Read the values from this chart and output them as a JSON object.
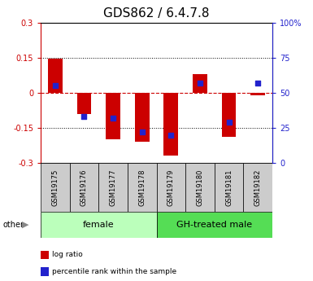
{
  "title": "GDS862 / 6.4.7.8",
  "samples": [
    "GSM19175",
    "GSM19176",
    "GSM19177",
    "GSM19178",
    "GSM19179",
    "GSM19180",
    "GSM19181",
    "GSM19182"
  ],
  "log_ratio": [
    0.145,
    -0.09,
    -0.2,
    -0.21,
    -0.27,
    0.08,
    -0.19,
    -0.01
  ],
  "percentile_rank": [
    55,
    33,
    32,
    22,
    20,
    57,
    29,
    57
  ],
  "groups": [
    {
      "label": "female",
      "start": 0,
      "end": 4,
      "color": "#bbffbb"
    },
    {
      "label": "GH-treated male",
      "start": 4,
      "end": 8,
      "color": "#55dd55"
    }
  ],
  "left_ylim": [
    -0.3,
    0.3
  ],
  "right_ylim": [
    0,
    100
  ],
  "left_yticks": [
    -0.3,
    -0.15,
    0,
    0.15,
    0.3
  ],
  "right_yticks": [
    0,
    25,
    50,
    75,
    100
  ],
  "left_yticklabels": [
    "-0.3",
    "-0.15",
    "0",
    "0.15",
    "0.3"
  ],
  "right_yticklabels": [
    "0",
    "25",
    "50",
    "75",
    "100%"
  ],
  "bar_color_red": "#cc0000",
  "bar_color_blue": "#2222cc",
  "bar_width": 0.5,
  "dot_size": 22,
  "hline_color": "#cc0000",
  "hline_style": "--",
  "grid_color": "#000000",
  "grid_style": ":",
  "bg_color": "#ffffff",
  "plot_bg": "#ffffff",
  "legend_labels": [
    "log ratio",
    "percentile rank within the sample"
  ],
  "legend_colors": [
    "#cc0000",
    "#2222cc"
  ],
  "tick_label_fontsize": 7,
  "title_fontsize": 11,
  "sample_fontsize": 6,
  "group_fontsize": 8
}
